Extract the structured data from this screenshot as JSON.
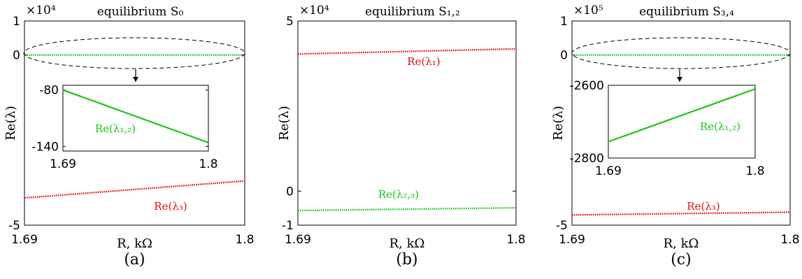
{
  "chart_data": [
    {
      "type": "line",
      "title": "equilibrium S₀",
      "panel_label": "(a)",
      "xlabel": "R, kΩ",
      "ylabel": "Re(λ)",
      "multiplier": "×10⁴",
      "xlim": [
        1.69,
        1.8
      ],
      "ylim": [
        -5,
        1
      ],
      "xticks": [
        "1.69",
        "1.8"
      ],
      "yticks": [
        {
          "v": 1,
          "label": "1"
        },
        {
          "v": 0,
          "label": "0"
        },
        {
          "v": -5,
          "label": "-5"
        }
      ],
      "series": [
        {
          "name": "Re(λ₁,₂)",
          "color": "#19c819",
          "x": [
            1.69,
            1.8
          ],
          "y": [
            0,
            0
          ],
          "annotation": "Re(λ₁,₂)"
        },
        {
          "name": "Re(λ₃)",
          "color": "#e01010",
          "x": [
            1.69,
            1.8
          ],
          "y": [
            -4.2,
            -3.7
          ],
          "annotation": "Re(λ₃)"
        }
      ],
      "inset": {
        "xlim": [
          1.69,
          1.8
        ],
        "ylim": [
          -145,
          -75
        ],
        "xticks": [
          "1.69",
          "1.8"
        ],
        "yticks": [
          {
            "v": -80,
            "label": "-80"
          },
          {
            "v": -140,
            "label": "-140"
          }
        ],
        "series": {
          "name": "Re(λ₁,₂)",
          "color": "#19c819",
          "x": [
            1.69,
            1.8
          ],
          "y": [
            -80,
            -136
          ]
        },
        "annotation": "Re(λ₁,₂)"
      }
    },
    {
      "type": "line",
      "title": "equilibrium S₁,₂",
      "panel_label": "(b)",
      "xlabel": "R, kΩ",
      "ylabel": "Re(λ)",
      "multiplier": "×10⁴",
      "xlim": [
        1.69,
        1.8
      ],
      "ylim": [
        -1,
        5
      ],
      "xticks": [
        "1.69",
        "1.8"
      ],
      "yticks": [
        {
          "v": 5,
          "label": "5"
        },
        {
          "v": 0,
          "label": "0"
        },
        {
          "v": -1,
          "label": "-1"
        }
      ],
      "series": [
        {
          "name": "Re(λ₁)",
          "color": "#e01010",
          "x": [
            1.69,
            1.8
          ],
          "y": [
            4.03,
            4.18
          ],
          "annotation": "Re(λ₁)"
        },
        {
          "name": "Re(λ₂,₃)",
          "color": "#19c819",
          "x": [
            1.69,
            1.8
          ],
          "y": [
            -0.57,
            -0.49
          ],
          "annotation": "Re(λ₂,₃)"
        }
      ]
    },
    {
      "type": "line",
      "title": "equilibrium S₃,₄",
      "panel_label": "(c)",
      "xlabel": "R, kΩ",
      "ylabel": "Re(λ)",
      "multiplier": "×10⁵",
      "xlim": [
        1.69,
        1.8
      ],
      "ylim": [
        -5,
        1
      ],
      "xticks": [
        "1.69",
        "1.8"
      ],
      "yticks": [
        {
          "v": 1,
          "label": "1"
        },
        {
          "v": 0,
          "label": "0"
        },
        {
          "v": -5,
          "label": "-5"
        }
      ],
      "series": [
        {
          "name": "Re(λ₁,₂)",
          "color": "#19c819",
          "x": [
            1.69,
            1.8
          ],
          "y": [
            0,
            0
          ],
          "annotation": "Re(λ₁,₂)"
        },
        {
          "name": "Re(λ₃)",
          "color": "#e01010",
          "x": [
            1.69,
            1.8
          ],
          "y": [
            -4.7,
            -4.62
          ],
          "annotation": "Re(λ₃)"
        }
      ],
      "inset": {
        "xlim": [
          1.69,
          1.8
        ],
        "ylim": [
          -2800,
          -2600
        ],
        "xticks": [
          "1.69",
          "1.8"
        ],
        "yticks": [
          {
            "v": -2600,
            "label": "-2600"
          },
          {
            "v": -2800,
            "label": "-2800"
          }
        ],
        "series": {
          "name": "Re(λ₁,₂)",
          "color": "#19c819",
          "x": [
            1.69,
            1.8
          ],
          "y": [
            -2755,
            -2610
          ]
        },
        "annotation": "Re(λ₁,₂)"
      }
    }
  ]
}
